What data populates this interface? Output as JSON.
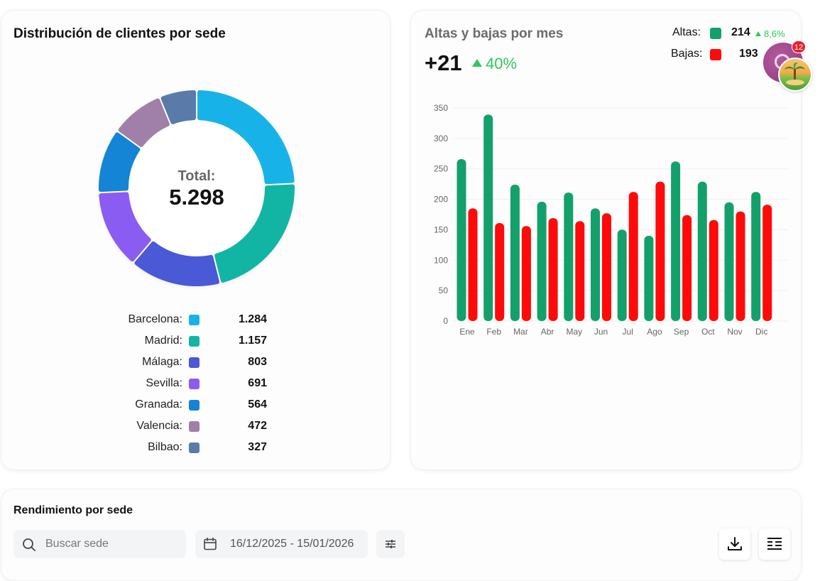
{
  "distribution": {
    "title": "Distribución de clientes por sede",
    "total_label": "Total:",
    "total_value": "5.298",
    "legend": [
      {
        "label": "Barcelona:",
        "value": "1.284",
        "color": "#17b3e8"
      },
      {
        "label": "Madrid:",
        "value": "1.157",
        "color": "#12b5a4"
      },
      {
        "label": "Málaga:",
        "value": "803",
        "color": "#4a59d6"
      },
      {
        "label": "Sevilla:",
        "value": "691",
        "color": "#8b5cf2"
      },
      {
        "label": "Granada:",
        "value": "564",
        "color": "#1484d4"
      },
      {
        "label": "Valencia:",
        "value": "472",
        "color": "#a07fa8"
      },
      {
        "label": "Bilbao:",
        "value": "327",
        "color": "#5a7aaa"
      }
    ]
  },
  "altas_bajas": {
    "title": "Altas y bajas por mes",
    "net_value": "+21",
    "net_change": "40%",
    "altas_label": "Altas:",
    "altas_value": "214",
    "altas_change": "8,6%",
    "altas_color": "#14a06a",
    "bajas_label": "Bajas:",
    "bajas_value": "193",
    "bajas_color": "#ff0a0a"
  },
  "chart_data": {
    "type": "bar",
    "categories": [
      "Ene",
      "Feb",
      "Mar",
      "Abr",
      "May",
      "Jun",
      "Jul",
      "Ago",
      "Sep",
      "Oct",
      "Nov",
      "Dic"
    ],
    "series": [
      {
        "name": "Altas",
        "values": [
          266,
          339,
          224,
          196,
          211,
          185,
          150,
          140,
          262,
          229,
          195,
          212
        ],
        "color": "#14a06a"
      },
      {
        "name": "Bajas",
        "values": [
          185,
          161,
          156,
          169,
          164,
          177,
          212,
          229,
          174,
          166,
          180,
          191
        ],
        "color": "#ff0a0a"
      }
    ],
    "ylim": [
      0,
      350
    ],
    "yticks": [
      0,
      50,
      100,
      150,
      200,
      250,
      300,
      350
    ],
    "grid": true,
    "legend": "top-right"
  },
  "notifications": {
    "count": "12"
  },
  "rendimiento": {
    "title": "Rendimiento por sede",
    "search_placeholder": "Buscar sede",
    "date_range": "16/12/2025 - 15/01/2026"
  },
  "icons": {
    "search": "search-icon",
    "calendar": "calendar-icon",
    "filter": "sliders-icon",
    "download": "download-icon",
    "columns": "columns-icon"
  }
}
